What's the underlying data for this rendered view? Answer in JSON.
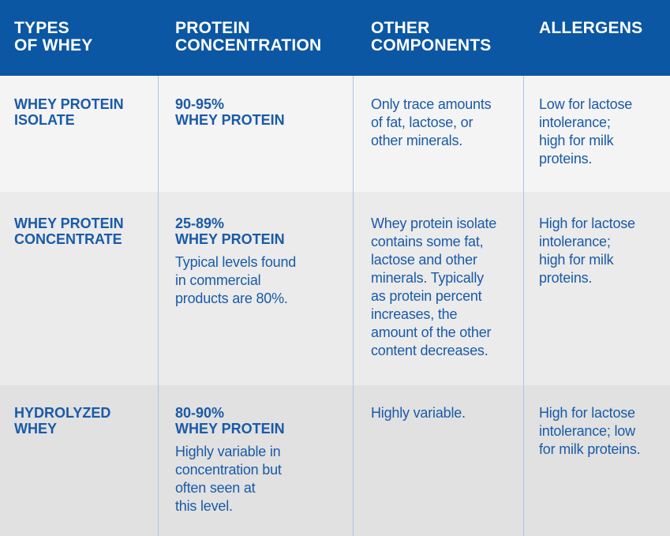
{
  "header": [
    "TYPES OF WHEY",
    "PROTEIN CONCENTRATION",
    "OTHER COMPONENTS",
    "ALLERGENS"
  ],
  "header_lines": [
    [
      "TYPES",
      "OF WHEY"
    ],
    [
      "PROTEIN",
      "CONCENTRATION"
    ],
    [
      "OTHER",
      "COMPONENTS"
    ],
    [
      "ALLERGENS"
    ]
  ],
  "rows": [
    {
      "type": [
        "WHEY PROTEIN",
        "ISOLATE"
      ],
      "concentration": [
        "90-95%",
        "WHEY PROTEIN"
      ],
      "concentration_note": [],
      "other": [
        "Only trace amounts",
        "of fat, lactose, or",
        "other minerals."
      ],
      "allergens": [
        "Low for lactose",
        "intolerance;",
        "high for milk",
        "proteins."
      ]
    },
    {
      "type": [
        "WHEY PROTEIN",
        "CONCENTRATE"
      ],
      "concentration": [
        "25-89%",
        "WHEY PROTEIN"
      ],
      "concentration_note": [
        "Typical levels found",
        "in commercial",
        "products are 80%."
      ],
      "other": [
        "Whey protein isolate",
        "contains some fat,",
        "lactose and other",
        "minerals. Typically",
        "as protein percent",
        "increases, the",
        "amount of the other",
        "content decreases."
      ],
      "allergens": [
        "High for lactose",
        "intolerance;",
        "high for milk",
        "proteins."
      ]
    },
    {
      "type": [
        "HYDROLYZED",
        "WHEY"
      ],
      "concentration": [
        "80-90%",
        "WHEY PROTEIN"
      ],
      "concentration_note": [
        "Highly variable in",
        "concentration but",
        "often seen at",
        "this level."
      ],
      "other": [
        "Highly variable."
      ],
      "allergens": [
        "High for lactose",
        "intolerance; low",
        "for milk proteins."
      ]
    }
  ]
}
